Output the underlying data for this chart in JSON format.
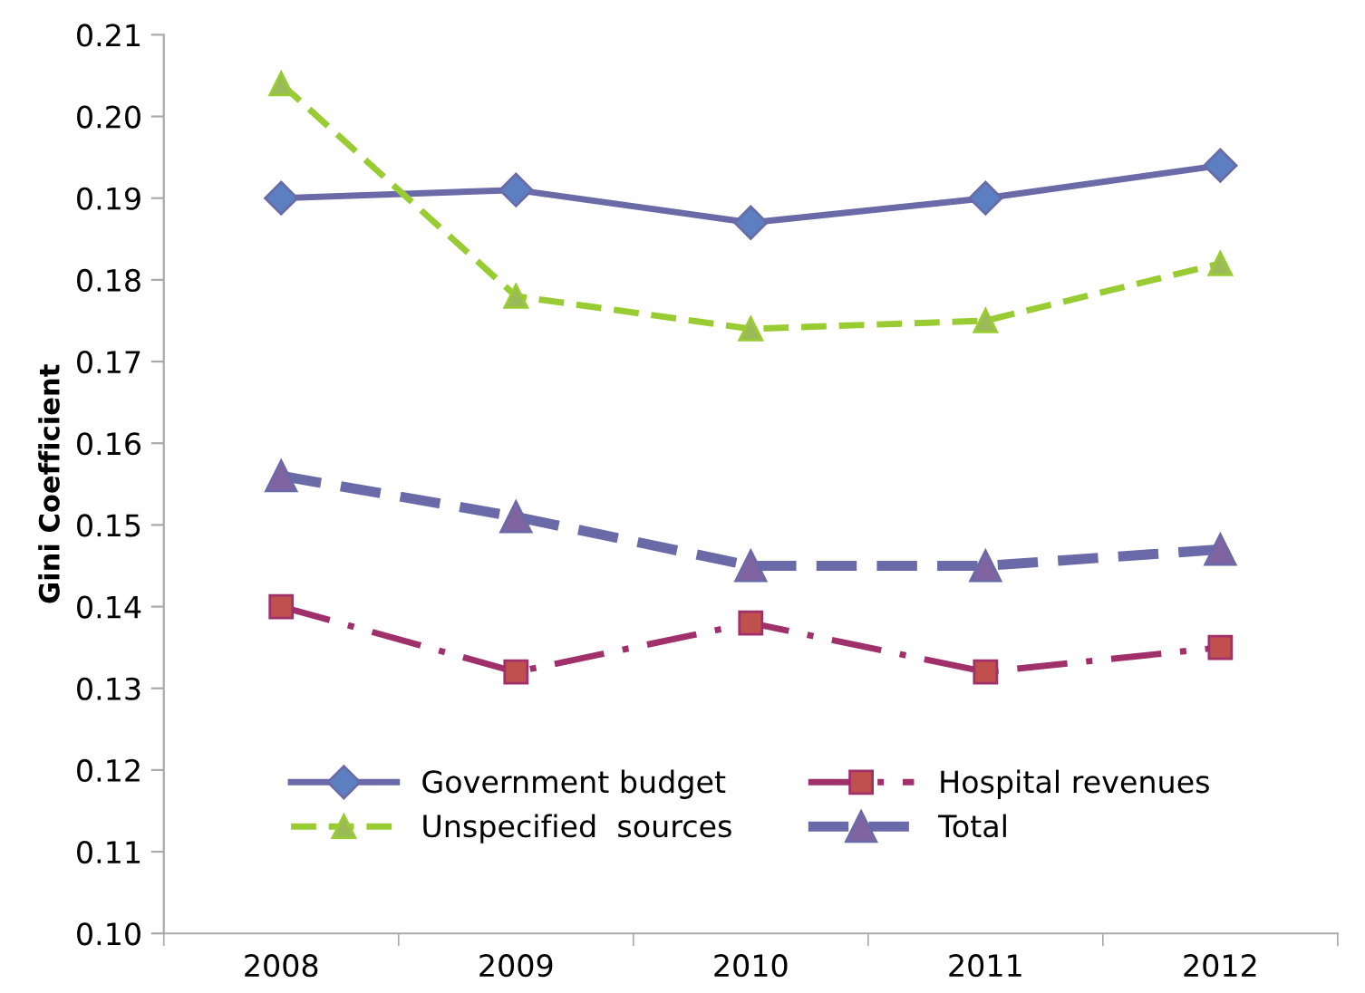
{
  "chart_data": {
    "type": "line",
    "ylabel": "Gini Coefficient",
    "categories": [
      "2008",
      "2009",
      "2010",
      "2011",
      "2012"
    ],
    "series": [
      {
        "name": "Government budget",
        "color": "#6a6aa8",
        "marker": "diamond",
        "line_style": "solid",
        "values": [
          0.19,
          0.191,
          0.187,
          0.19,
          0.194
        ]
      },
      {
        "name": "Hospital revenues",
        "color": "#a0306a",
        "marker": "square",
        "line_style": "dashdot",
        "values": [
          0.14,
          0.132,
          0.138,
          0.132,
          0.135
        ]
      },
      {
        "name": "Unspecified  sources",
        "color": "#99cc33",
        "marker": "triangle",
        "line_style": "dashed",
        "values": [
          0.204,
          0.178,
          0.174,
          0.175,
          0.182
        ]
      },
      {
        "name": "Total",
        "color": "#6a6aa8",
        "marker": "triangle",
        "line_style": "dashed",
        "values": [
          0.156,
          0.151,
          0.145,
          0.145,
          0.147
        ]
      }
    ],
    "ylim": [
      0.1,
      0.21
    ],
    "yticks": [
      {
        "value": 0.1,
        "label": "0.10"
      },
      {
        "value": 0.11,
        "label": "0.11"
      },
      {
        "value": 0.12,
        "label": "0.12"
      },
      {
        "value": 0.13,
        "label": "0.13"
      },
      {
        "value": 0.14,
        "label": "0.14"
      },
      {
        "value": 0.15,
        "label": "0.15"
      },
      {
        "value": 0.16,
        "label": "0.16"
      },
      {
        "value": 0.17,
        "label": "0.17"
      },
      {
        "value": 0.18,
        "label": "0.18"
      },
      {
        "value": 0.19,
        "label": "0.19"
      },
      {
        "value": 0.2,
        "label": "0.20"
      },
      {
        "value": 0.21,
        "label": "0.21"
      }
    ],
    "grid": false,
    "legend": "bottom"
  }
}
